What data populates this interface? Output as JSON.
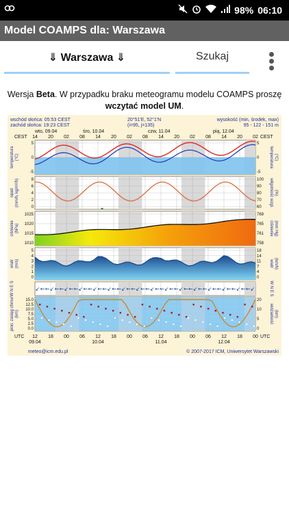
{
  "status": {
    "time": "06:10",
    "battery": "98%"
  },
  "app_title": "Model COAMPS dla: Warszawa",
  "tabs": {
    "city": "Warszawa",
    "arrow": "⇓",
    "search": "Szukaj"
  },
  "notice": {
    "part1": "Wersja ",
    "beta": "Beta",
    "part2": ". W przypadku braku meteogramu modelu COAMPS proszę ",
    "link": "wczytać model UM",
    "part3": "."
  },
  "meteogram": {
    "sunrise": "wschód słońca: 05:53 CEST",
    "sunset": "zachód słońca: 19:23 CEST",
    "coords": "20°51'E, 52°1'N",
    "grid": "(i=95, j=135)",
    "height_label": "wysokość (min, środek, max)",
    "height_values": "95 - 122 - 151 m",
    "days_top": [
      "wto, 09.04",
      "śro, 10.04",
      "czw, 11.04",
      "pią, 12.04"
    ],
    "cest_label": "CEST",
    "utc_label": "UTC",
    "hours_top": [
      "14",
      "20",
      "02",
      "08",
      "14",
      "20",
      "02",
      "08",
      "14",
      "20",
      "02",
      "08",
      "14",
      "20",
      "02"
    ],
    "hours_bottom": [
      "12",
      "18",
      "00",
      "06",
      "12",
      "18",
      "00",
      "06",
      "12",
      "18",
      "00",
      "06",
      "12",
      "18",
      "00"
    ],
    "dates_bottom": [
      "09.04",
      "10.04",
      "11.04",
      "12.04"
    ],
    "panels": [
      {
        "left": "temperatura\n(°C)",
        "right": "temperatura\n(°C)",
        "ticks": [
          "5",
          "0",
          "-5"
        ],
        "rticks": [
          "5",
          "0",
          "-5"
        ]
      },
      {
        "left": "opad\n(mm/h, kg/m²/h)",
        "right": "wilgotność wzgl.\n(%)",
        "ticks": [
          "8",
          "6",
          "4",
          "2",
          "0"
        ],
        "rticks": [
          "100",
          "90",
          "80",
          "70",
          "60"
        ]
      },
      {
        "left": "ciśnienie\n(hPa)",
        "right": "ciśnienie\n(mm Hg)",
        "ticks": [
          "1025",
          "1020",
          "1015",
          "1010"
        ],
        "rticks": [
          "769",
          "765",
          "761",
          "758"
        ]
      },
      {
        "left": "wiatr\n(m/s)",
        "right": "wiatr\n(km/h)",
        "ticks": [
          "5",
          "4",
          "3",
          "2",
          "1",
          "0"
        ],
        "rticks": [
          "18",
          "14",
          "11",
          "7",
          "4",
          "0"
        ]
      },
      {
        "left": "W N E S",
        "right": "W N E S",
        "ticks": [],
        "rticks": []
      },
      {
        "left": "pion. zasięg chmur\n(km)",
        "right": "widzialność\n(km)",
        "ticks": [
          "15.0",
          "12.5",
          "10.0",
          "7.5",
          "5.0",
          "2.5",
          "0.0"
        ],
        "rticks": [
          "20",
          "10",
          "5",
          "0"
        ]
      }
    ],
    "footer_left": "meteo@icm.edu.pl",
    "footer_right": "© 2007-2017 ICM, Uniwersytet Warszawski",
    "colors": {
      "temp": "#e0322a",
      "dew": "#2b3fb8",
      "rh": "#e06a3a",
      "pressure": "#111111",
      "wind": "#1a4a8e",
      "cloud_base": "#c98b2a"
    }
  }
}
